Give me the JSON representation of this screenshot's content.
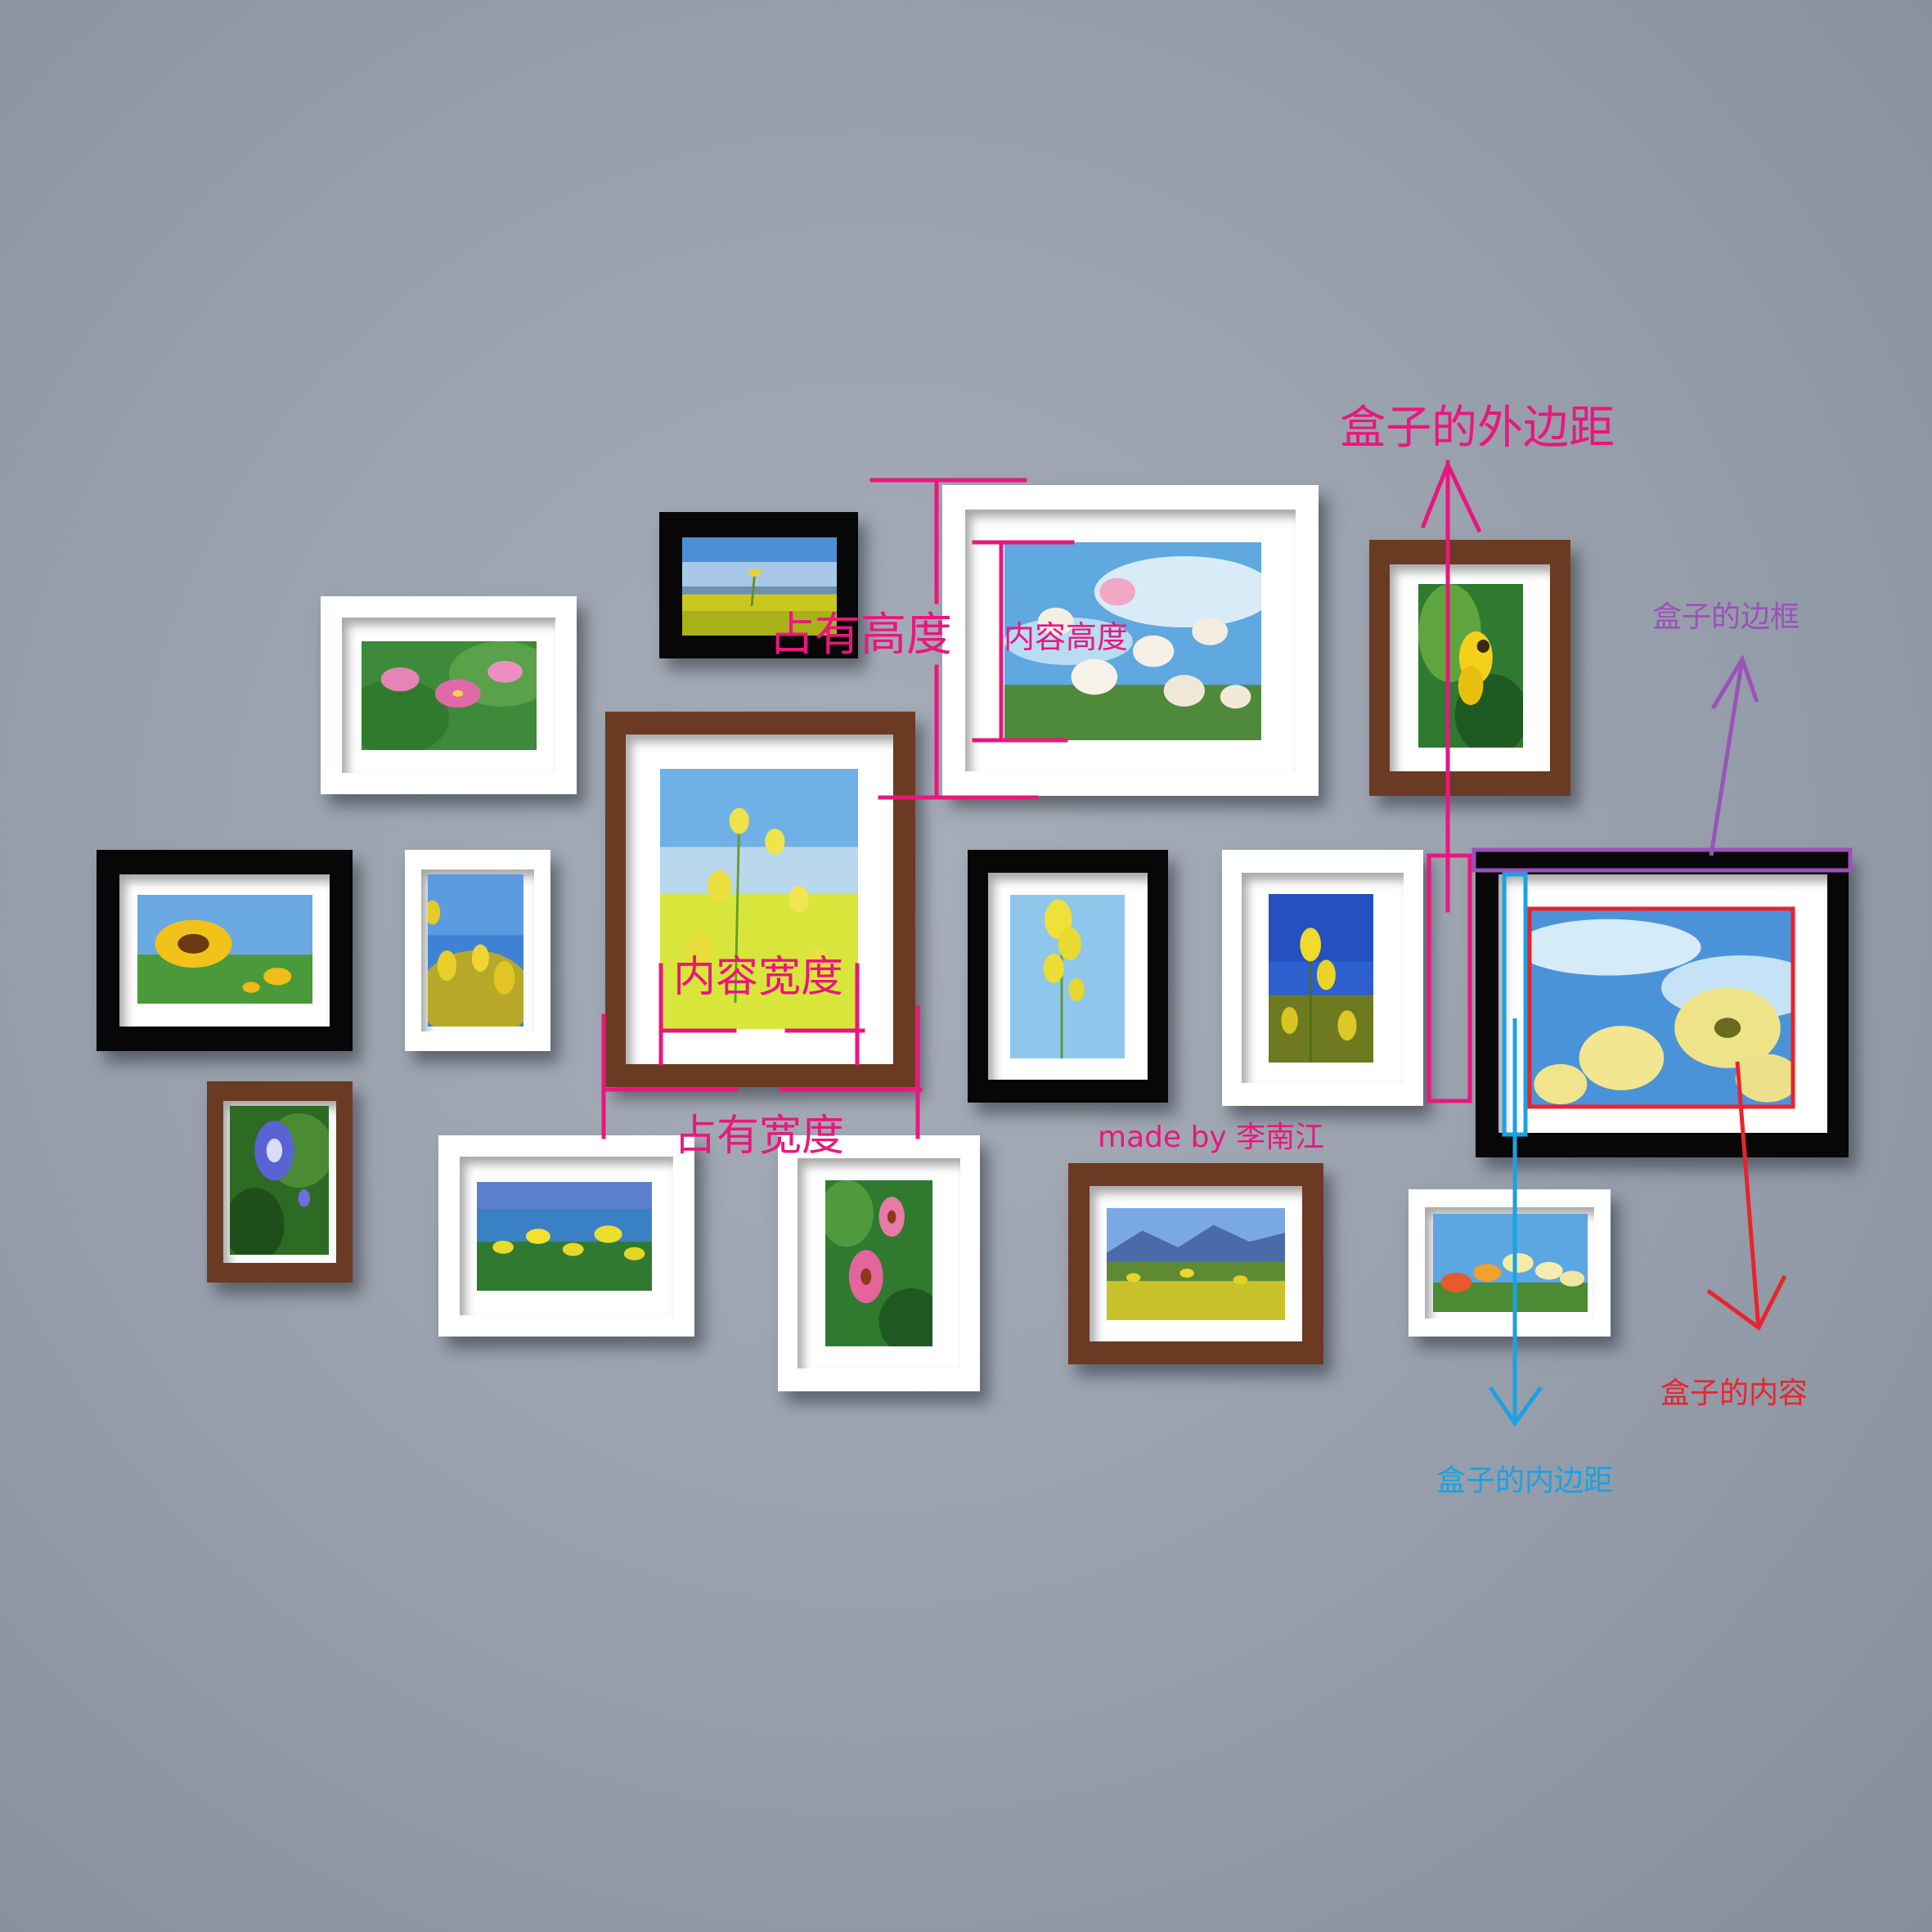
{
  "annotations": {
    "occupied_height": "占有高度",
    "content_height": "内容高度",
    "content_width": "内容宽度",
    "occupied_width": "占有宽度",
    "margin": "盒子的外边距",
    "border": "盒子的边框",
    "content": "盒子的内容",
    "padding": "盒子的内边距",
    "credit": "made by 李南江"
  },
  "colors": {
    "pink": "#e8177d",
    "purple": "#9a52b8",
    "red": "#e8242c",
    "blue": "#1ba1e2",
    "frame_black": "#070707",
    "frame_white": "#ffffff",
    "frame_brown": "#6b3a22",
    "wall": "#9aa2ae"
  },
  "frames": [
    {
      "id": "lily",
      "finish": "white",
      "subject": "pink lilies"
    },
    {
      "id": "canola-field",
      "finish": "black",
      "subject": "canola field and sky"
    },
    {
      "id": "daisies-sky",
      "finish": "white",
      "subject": "white daisies against sky"
    },
    {
      "id": "bee",
      "finish": "brown",
      "subject": "bee on yellow flower"
    },
    {
      "id": "sunflower",
      "finish": "black",
      "subject": "sunflower"
    },
    {
      "id": "yellow-blossoms",
      "finish": "white",
      "subject": "yellow blossoms"
    },
    {
      "id": "canola-large",
      "finish": "brown",
      "subject": "canola flowers"
    },
    {
      "id": "canola-stem",
      "finish": "black",
      "subject": "canola stem"
    },
    {
      "id": "canola-bluesky",
      "finish": "white",
      "subject": "canola against blue sky"
    },
    {
      "id": "chrysanthemum",
      "finish": "black",
      "subject": "yellow chrysanthemums"
    },
    {
      "id": "bellflower",
      "finish": "brown",
      "subject": "purple bellflower"
    },
    {
      "id": "river-flowers",
      "finish": "white",
      "subject": "flowers by river"
    },
    {
      "id": "coneflower",
      "finish": "white",
      "subject": "pink coneflowers"
    },
    {
      "id": "mountain-field",
      "finish": "brown",
      "subject": "flower field with mountains"
    },
    {
      "id": "colorful-daisies",
      "finish": "white",
      "subject": "colorful daisies"
    }
  ]
}
